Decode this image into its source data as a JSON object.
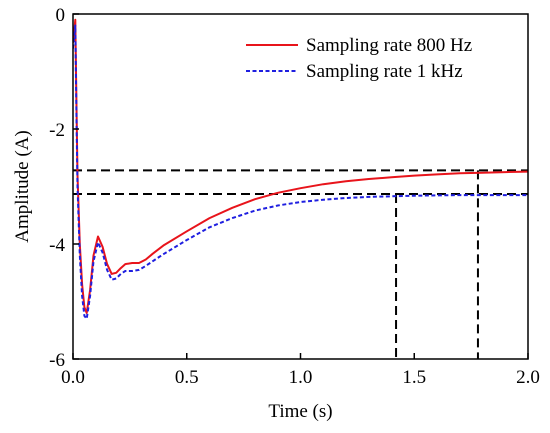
{
  "chart_data": {
    "type": "line",
    "title": "",
    "xlabel": "Time (s)",
    "ylabel": "Amplitude (A)",
    "xlim": [
      0,
      2.0
    ],
    "ylim": [
      -6,
      0
    ],
    "x_ticks": [
      0.0,
      0.5,
      1.0,
      1.5,
      2.0
    ],
    "x_tick_labels": [
      "0.0",
      "0.5",
      "1.0",
      "1.5",
      "2.0"
    ],
    "y_ticks": [
      0,
      -2,
      -4,
      -6
    ],
    "y_tick_labels": [
      "0",
      "-2",
      "-4",
      "-6"
    ],
    "grid": false,
    "legend_position": "top-right",
    "series": [
      {
        "name": "Sampling rate 800 Hz",
        "color": "#e8141b",
        "style": "solid",
        "points": [
          [
            0.0,
            -0.5
          ],
          [
            0.01,
            -0.1
          ],
          [
            0.015,
            -1.5
          ],
          [
            0.02,
            -2.8
          ],
          [
            0.03,
            -4.0
          ],
          [
            0.04,
            -4.7
          ],
          [
            0.05,
            -5.1
          ],
          [
            0.06,
            -5.2
          ],
          [
            0.075,
            -4.8
          ],
          [
            0.09,
            -4.2
          ],
          [
            0.11,
            -3.87
          ],
          [
            0.13,
            -4.05
          ],
          [
            0.15,
            -4.35
          ],
          [
            0.17,
            -4.52
          ],
          [
            0.19,
            -4.5
          ],
          [
            0.21,
            -4.42
          ],
          [
            0.23,
            -4.35
          ],
          [
            0.26,
            -4.33
          ],
          [
            0.29,
            -4.33
          ],
          [
            0.32,
            -4.27
          ],
          [
            0.35,
            -4.17
          ],
          [
            0.4,
            -4.02
          ],
          [
            0.5,
            -3.78
          ],
          [
            0.6,
            -3.55
          ],
          [
            0.7,
            -3.37
          ],
          [
            0.8,
            -3.22
          ],
          [
            0.9,
            -3.11
          ],
          [
            1.0,
            -3.03
          ],
          [
            1.1,
            -2.96
          ],
          [
            1.2,
            -2.91
          ],
          [
            1.3,
            -2.87
          ],
          [
            1.4,
            -2.84
          ],
          [
            1.5,
            -2.81
          ],
          [
            1.6,
            -2.79
          ],
          [
            1.7,
            -2.77
          ],
          [
            1.8,
            -2.76
          ],
          [
            1.9,
            -2.75
          ],
          [
            2.0,
            -2.74
          ]
        ]
      },
      {
        "name": "Sampling rate 1 kHz",
        "color": "#1f1fe0",
        "style": "dashed",
        "points": [
          [
            0.0,
            -0.6
          ],
          [
            0.01,
            -0.2
          ],
          [
            0.015,
            -1.7
          ],
          [
            0.02,
            -3.0
          ],
          [
            0.03,
            -4.2
          ],
          [
            0.04,
            -4.9
          ],
          [
            0.05,
            -5.25
          ],
          [
            0.06,
            -5.3
          ],
          [
            0.075,
            -4.9
          ],
          [
            0.09,
            -4.3
          ],
          [
            0.11,
            -3.97
          ],
          [
            0.13,
            -4.15
          ],
          [
            0.15,
            -4.45
          ],
          [
            0.17,
            -4.62
          ],
          [
            0.19,
            -4.6
          ],
          [
            0.21,
            -4.52
          ],
          [
            0.23,
            -4.47
          ],
          [
            0.26,
            -4.47
          ],
          [
            0.29,
            -4.45
          ],
          [
            0.32,
            -4.38
          ],
          [
            0.35,
            -4.3
          ],
          [
            0.4,
            -4.17
          ],
          [
            0.5,
            -3.93
          ],
          [
            0.6,
            -3.71
          ],
          [
            0.7,
            -3.55
          ],
          [
            0.8,
            -3.42
          ],
          [
            0.9,
            -3.33
          ],
          [
            1.0,
            -3.27
          ],
          [
            1.1,
            -3.23
          ],
          [
            1.2,
            -3.2
          ],
          [
            1.3,
            -3.18
          ],
          [
            1.4,
            -3.17
          ],
          [
            1.5,
            -3.16
          ],
          [
            1.6,
            -3.155
          ],
          [
            1.7,
            -3.15
          ],
          [
            1.8,
            -3.15
          ],
          [
            1.9,
            -3.15
          ],
          [
            2.0,
            -3.15
          ]
        ]
      }
    ],
    "reference_lines": [
      {
        "from": [
          0.0,
          -2.72
        ],
        "to": [
          2.0,
          -2.72
        ],
        "color": "#000000",
        "style": "dashed"
      },
      {
        "from": [
          0.0,
          -3.13
        ],
        "to": [
          2.0,
          -3.13
        ],
        "color": "#000000",
        "style": "dashed"
      },
      {
        "from": [
          1.42,
          -3.13
        ],
        "to": [
          1.42,
          -6.0
        ],
        "color": "#000000",
        "style": "dashed"
      },
      {
        "from": [
          1.78,
          -2.72
        ],
        "to": [
          1.78,
          -6.0
        ],
        "color": "#000000",
        "style": "dashed"
      }
    ]
  }
}
